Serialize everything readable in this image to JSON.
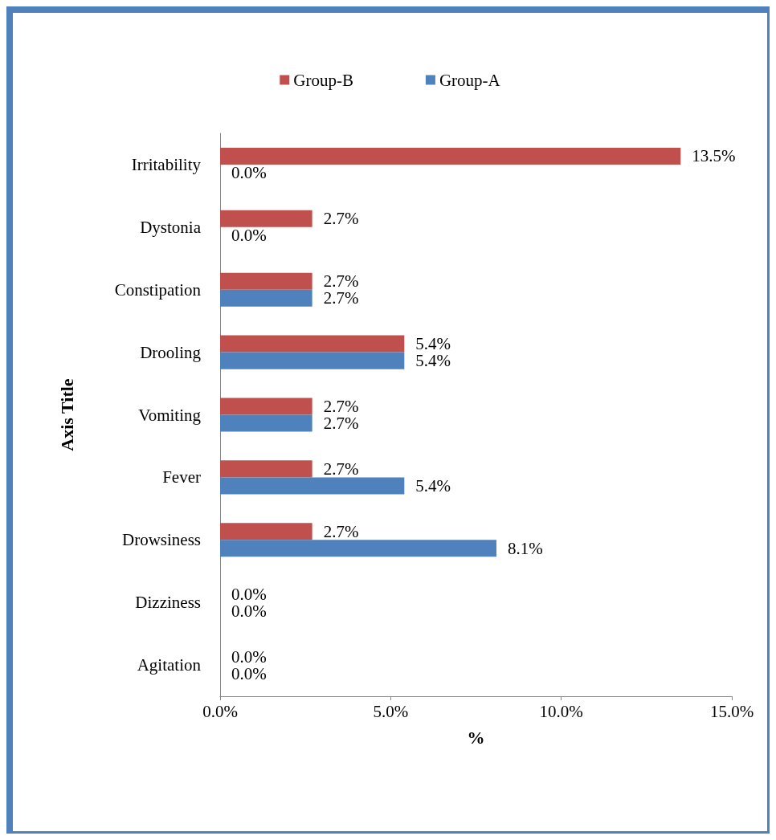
{
  "chart_data": {
    "type": "bar",
    "orientation": "horizontal",
    "xlabel": "%",
    "ylabel": "Axis Title",
    "categories": [
      "Irritability",
      "Dystonia",
      "Constipation",
      "Drooling",
      "Vomiting",
      "Fever",
      "Drowsiness",
      "Dizziness",
      "Agitation"
    ],
    "series": [
      {
        "name": "Group-B",
        "color": "#c0504d",
        "values": [
          13.5,
          2.7,
          2.7,
          5.4,
          2.7,
          2.7,
          2.7,
          0,
          0
        ],
        "value_labels": [
          "13.5%",
          "2.7%",
          "2.7%",
          "5.4%",
          "2.7%",
          "2.7%",
          "2.7%",
          "0.0%",
          "0.0%"
        ]
      },
      {
        "name": "Group-A",
        "color": "#4f81bd",
        "values": [
          0,
          0,
          2.7,
          5.4,
          2.7,
          5.4,
          8.1,
          0,
          0
        ],
        "value_labels": [
          "0.0%",
          "0.0%",
          "2.7%",
          "5.4%",
          "2.7%",
          "5.4%",
          "8.1%",
          "0.0%",
          "0.0%"
        ]
      }
    ],
    "xlim": [
      0,
      15
    ],
    "xticks": [
      {
        "value": 0,
        "label": "0.0%"
      },
      {
        "value": 5,
        "label": "5.0%"
      },
      {
        "value": 10,
        "label": "10.0%"
      },
      {
        "value": 15,
        "label": "15.0%"
      }
    ],
    "grid": false,
    "legend": "top"
  }
}
